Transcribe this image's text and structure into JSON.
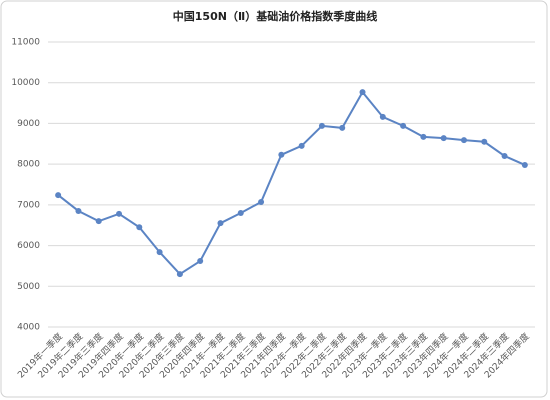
{
  "chart_data": {
    "type": "line",
    "title": "中国150N（Ⅱ）基础油价格指数季度曲线",
    "categories": [
      "2019年一季度",
      "2019年二季度",
      "2019年三季度",
      "2019年四季度",
      "2020年一季度",
      "2020年二季度",
      "2020年三季度",
      "2020年四季度",
      "2021年一季度",
      "2021年二季度",
      "2021年三季度",
      "2021年四季度",
      "2022年一季度",
      "2022年二季度",
      "2022年三季度",
      "2022年四季度",
      "2023年一季度",
      "2023年二季度",
      "2023年三季度",
      "2023年四季度",
      "2024年一季度",
      "2024年二季度",
      "2024年三季度",
      "2024年四季度"
    ],
    "values": [
      7240,
      6850,
      6600,
      6780,
      6450,
      5840,
      5300,
      5620,
      6550,
      6800,
      7070,
      8230,
      8450,
      8940,
      8890,
      9770,
      9160,
      8940,
      8670,
      8640,
      8590,
      8550,
      8200,
      7980
    ],
    "color": "#5b84c4",
    "ylim": [
      4000,
      11000
    ],
    "yticks": [
      4000,
      5000,
      6000,
      7000,
      8000,
      9000,
      10000,
      11000
    ],
    "grid": true
  }
}
